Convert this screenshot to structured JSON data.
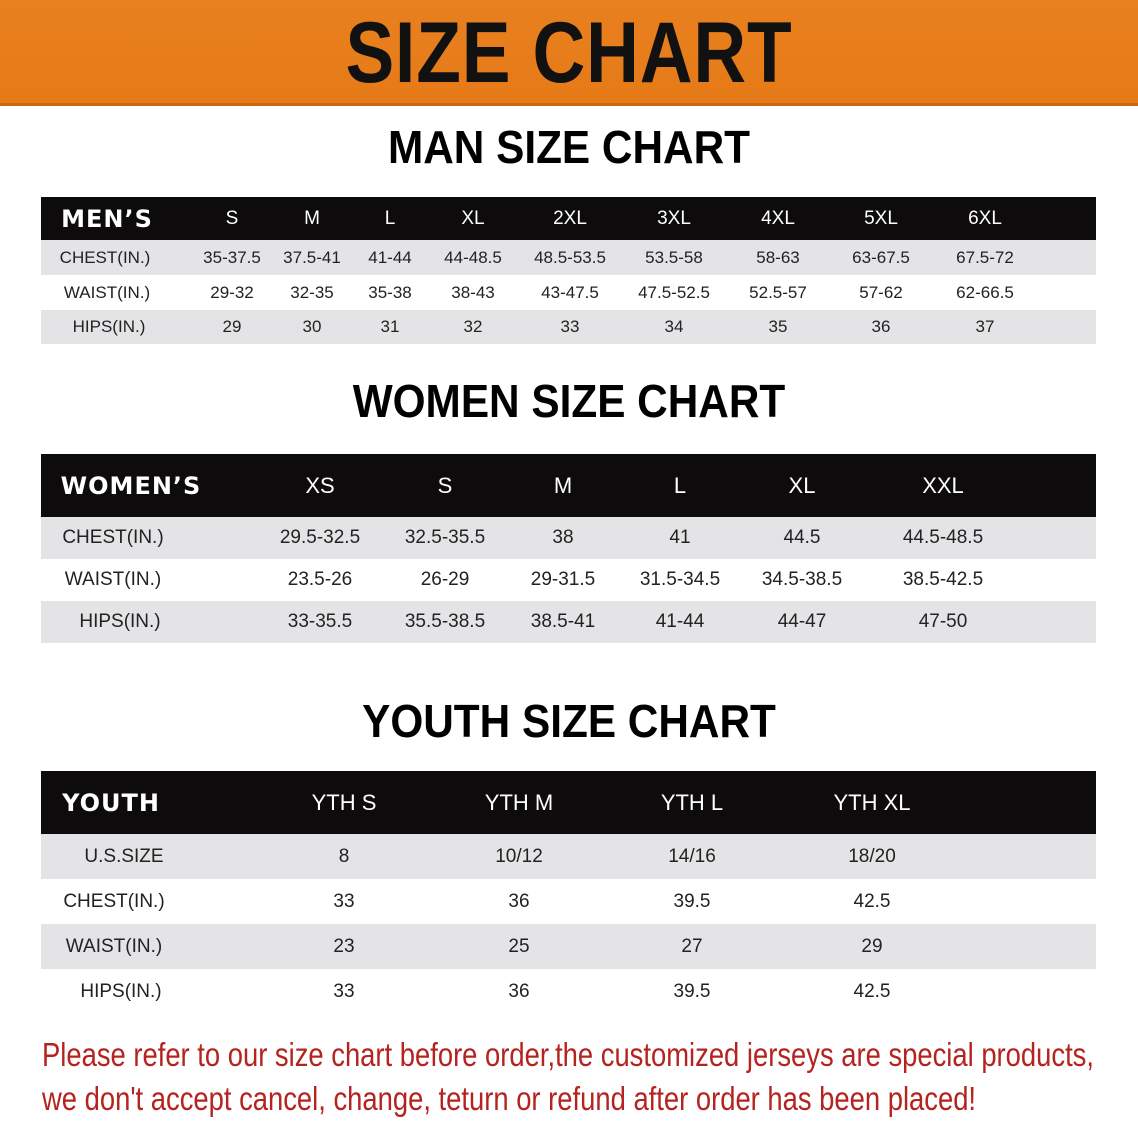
{
  "banner": {
    "title": "SIZE CHART",
    "color": "#e67d1a"
  },
  "men": {
    "title": "MAN SIZE CHART",
    "header": [
      "MEN’S",
      "S",
      "M",
      "L",
      "XL",
      "2XL",
      "3XL",
      "4XL",
      "5XL",
      "6XL"
    ],
    "rows": [
      [
        "CHEST(IN.)",
        "35-37.5",
        "37.5-41",
        "41-44",
        "44-48.5",
        "48.5-53.5",
        "53.5-58",
        "58-63",
        "63-67.5",
        "67.5-72"
      ],
      [
        "WAIST(IN.)",
        "29-32",
        "32-35",
        "35-38",
        "38-43",
        "43-47.5",
        "47.5-52.5",
        "52.5-57",
        "57-62",
        "62-66.5"
      ],
      [
        "HIPS(IN.)",
        "29",
        "30",
        "31",
        "32",
        "33",
        "34",
        "35",
        "36",
        "37"
      ]
    ]
  },
  "women": {
    "title": "WOMEN SIZE CHART",
    "header": [
      "WOMEN’S",
      "XS",
      "S",
      "M",
      "L",
      "XL",
      "XXL"
    ],
    "rows": [
      [
        "CHEST(IN.)",
        "29.5-32.5",
        "32.5-35.5",
        "38",
        "41",
        "44.5",
        "44.5-48.5"
      ],
      [
        "WAIST(IN.)",
        "23.5-26",
        "26-29",
        "29-31.5",
        "31.5-34.5",
        "34.5-38.5",
        "38.5-42.5"
      ],
      [
        "HIPS(IN.)",
        "33-35.5",
        "35.5-38.5",
        "38.5-41",
        "41-44",
        "44-47",
        "47-50"
      ]
    ]
  },
  "youth": {
    "title": "YOUTH SIZE CHART",
    "header": [
      "YOUTH",
      "YTH S",
      "YTH M",
      "YTH L",
      "YTH XL"
    ],
    "rows": [
      [
        "U.S.SIZE",
        "8",
        "10/12",
        "14/16",
        "18/20"
      ],
      [
        "CHEST(IN.)",
        "33",
        "36",
        "39.5",
        "42.5"
      ],
      [
        "WAIST(IN.)",
        "23",
        "25",
        "27",
        "29"
      ],
      [
        "HIPS(IN.)",
        "33",
        "36",
        "39.5",
        "42.5"
      ]
    ]
  },
  "notice": {
    "line1": "Please refer to our size chart before order,the customized jerseys are special products,",
    "line2": "we don't accept cancel, change, teturn or refund after order has been placed!",
    "color": "#b5231f"
  }
}
